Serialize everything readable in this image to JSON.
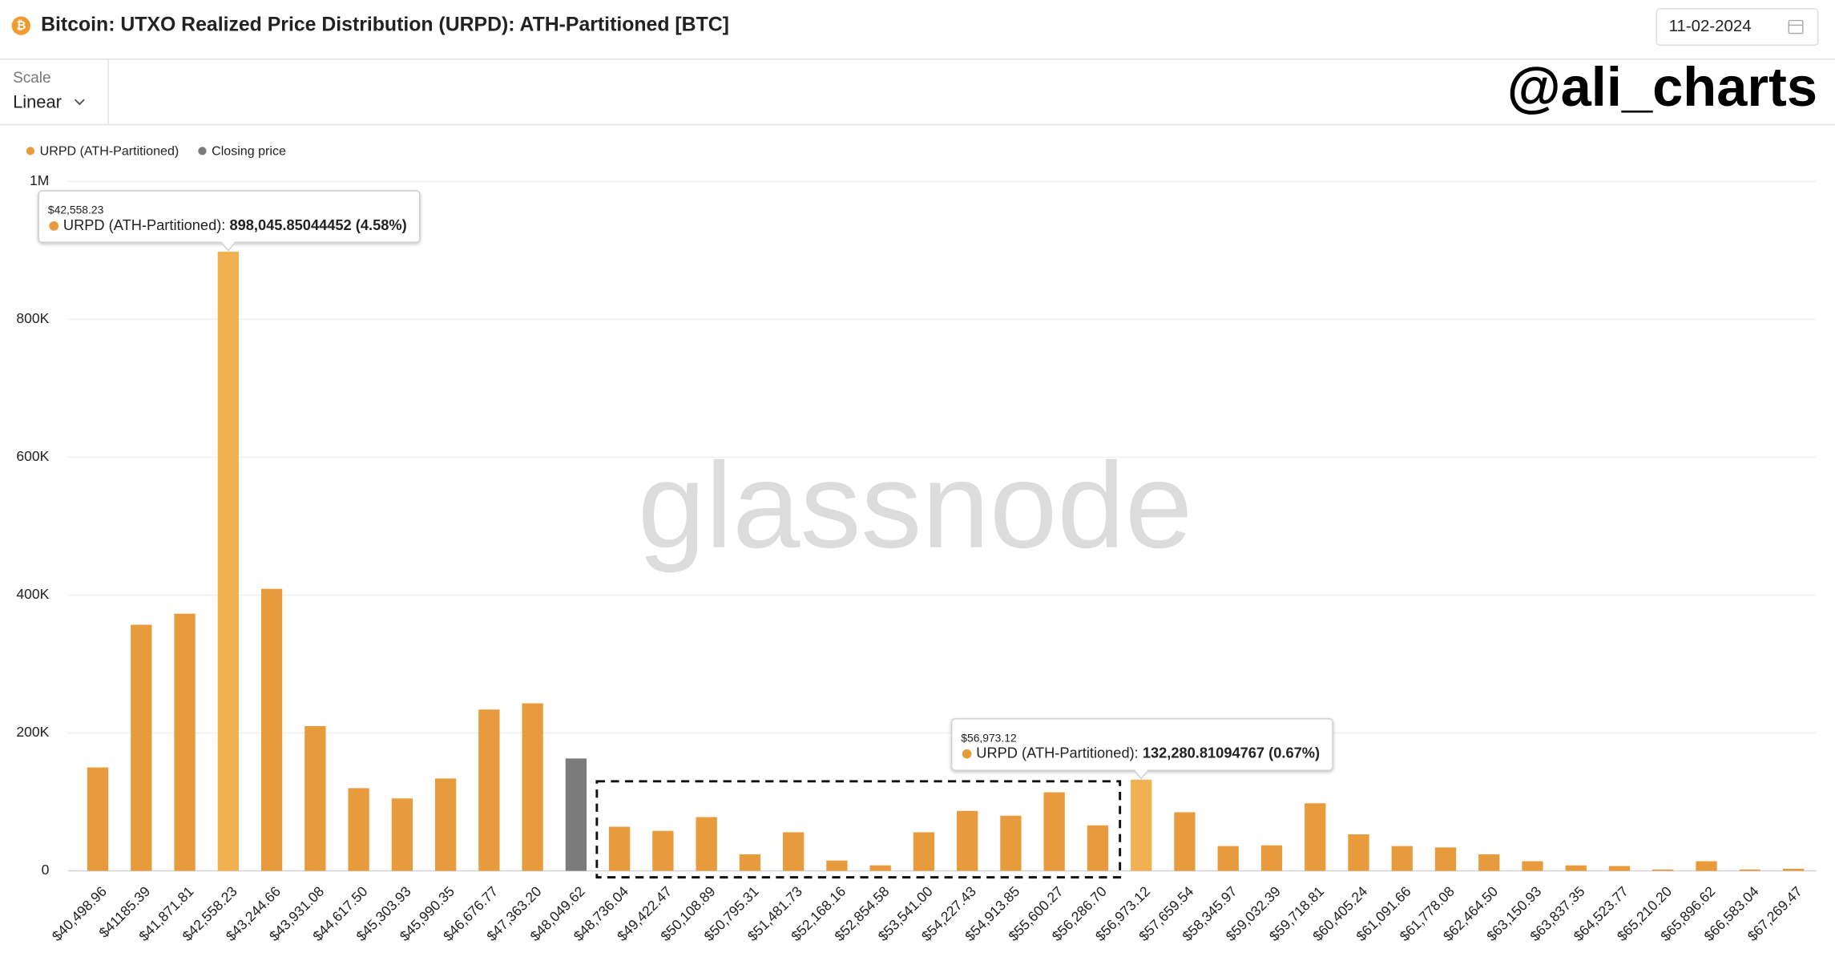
{
  "header": {
    "title": "Bitcoin: UTXO Realized Price Distribution (URPD): ATH-Partitioned [BTC]",
    "date": "11-02-2024"
  },
  "controls": {
    "scale_label": "Scale",
    "scale_value": "Linear"
  },
  "handle": "@ali_charts",
  "watermark": "glassnode",
  "chart_data": {
    "type": "bar",
    "categories": [
      "$40,498.96",
      "$41185.39",
      "$41,871.81",
      "$42,558.23",
      "$43,244.66",
      "$43,931.08",
      "$44,617.50",
      "$45,303.93",
      "$45,990.35",
      "$46,676.77",
      "$47,363.20",
      "$48,049.62",
      "$48,736.04",
      "$49,422.47",
      "$50,108.89",
      "$50,795.31",
      "$51,481.73",
      "$52,168.16",
      "$52,854.58",
      "$53,541.00",
      "$54,227.43",
      "$54,913.85",
      "$55,600.27",
      "$56,286.70",
      "$56,973.12",
      "$57,659.54",
      "$58,345.97",
      "$59,032.39",
      "$59,718.81",
      "$60,405.24",
      "$61,091.66",
      "$61,778.08",
      "$62,464.50",
      "$63,150.93",
      "$63,837.35",
      "$64,523.77",
      "$65,210.20",
      "$65,896.62",
      "$66,583.04",
      "$67,269.47"
    ],
    "series": [
      {
        "name": "URPD (ATH-Partitioned)",
        "color": "#e89b3c",
        "values": [
          150000,
          357000,
          373000,
          898045.85044452,
          409000,
          210000,
          120000,
          105000,
          134000,
          234000,
          243000,
          null,
          64000,
          58000,
          78000,
          24000,
          56000,
          15000,
          8000,
          56000,
          87000,
          80000,
          114000,
          66000,
          132280.81094767,
          85000,
          36000,
          37000,
          98000,
          53000,
          36000,
          34000,
          24000,
          14000,
          8000,
          7000,
          2000,
          14000,
          2000,
          3000
        ]
      },
      {
        "name": "Closing price",
        "color": "#7b7b7b",
        "values": [
          null,
          null,
          null,
          null,
          null,
          null,
          null,
          null,
          null,
          null,
          null,
          163000,
          null,
          null,
          null,
          null,
          null,
          null,
          null,
          null,
          null,
          null,
          null,
          null,
          null,
          null,
          null,
          null,
          null,
          null,
          null,
          null,
          null,
          null,
          null,
          null,
          null,
          null,
          null,
          null
        ]
      }
    ],
    "highlight_color": "#f2b150",
    "ylim": [
      0,
      1000000
    ],
    "yticks": [
      0,
      {
        "value": 200000,
        "label": "200K"
      },
      {
        "value": 400000,
        "label": "400K"
      },
      {
        "value": 600000,
        "label": "600K"
      },
      {
        "value": 800000,
        "label": "800K"
      },
      {
        "value": 1000000,
        "label": "1M"
      }
    ],
    "grid": true,
    "tooltips": [
      {
        "title": "$42,558.23",
        "label": "URPD (ATH-Partitioned):",
        "value": 898045.85044452,
        "value_label": "898,045.85044452",
        "percent": "(4.58%)"
      },
      {
        "title": "$56,973.12",
        "label": "URPD (ATH-Partitioned):",
        "value": 132280.81094767,
        "value_label": "132,280.81094767",
        "percent": "(0.67%)"
      }
    ]
  }
}
